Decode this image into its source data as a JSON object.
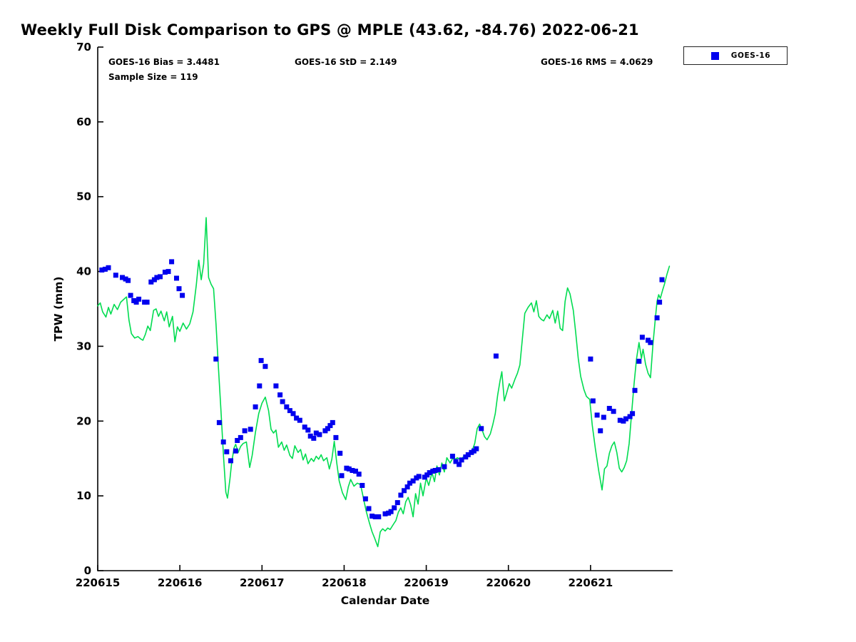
{
  "figure": {
    "title": "Weekly Full Disk Comparison to GPS @ MPLE (43.62, -84.76) 2022-06-21",
    "stats": {
      "bias": "GOES-16 Bias = 3.4481",
      "std": "GOES-16 StD = 2.149",
      "rms": "GOES-16 RMS = 4.0629",
      "sample_size": "Sample Size = 119"
    },
    "legend": {
      "position": "top-right",
      "entries": [
        {
          "label": "GOES-16",
          "marker": "square",
          "color": "#0000EE"
        }
      ]
    }
  },
  "chart_data": {
    "type": "line+scatter",
    "title": "Weekly Full Disk Comparison to GPS @ MPLE (43.62, -84.76) 2022-06-21",
    "xlabel": "Calendar Date",
    "ylabel": "TPW (mm)",
    "x_unit": "calendar day YYMMDD (values below are day-of-June 2022, 15 = 220615)",
    "xlim": [
      15,
      22
    ],
    "ylim": [
      0,
      70
    ],
    "grid": false,
    "legend_position": "top-right-outside",
    "x_ticks": [
      {
        "value": 15,
        "label": "220615"
      },
      {
        "value": 16,
        "label": "220616"
      },
      {
        "value": 17,
        "label": "220617"
      },
      {
        "value": 18,
        "label": "220618"
      },
      {
        "value": 19,
        "label": "220619"
      },
      {
        "value": 20,
        "label": "220620"
      },
      {
        "value": 21,
        "label": "220621"
      }
    ],
    "y_ticks": [
      {
        "value": 0,
        "label": "0"
      },
      {
        "value": 10,
        "label": "10"
      },
      {
        "value": 20,
        "label": "20"
      },
      {
        "value": 30,
        "label": "30"
      },
      {
        "value": 40,
        "label": "40"
      },
      {
        "value": 50,
        "label": "50"
      },
      {
        "value": 60,
        "label": "60"
      },
      {
        "value": 70,
        "label": "70"
      }
    ],
    "series": [
      {
        "name": "GPS",
        "type": "line",
        "color": "#00DC50",
        "x": [
          15.0,
          15.03,
          15.06,
          15.1,
          15.13,
          15.16,
          15.2,
          15.24,
          15.28,
          15.32,
          15.35,
          15.38,
          15.41,
          15.45,
          15.49,
          15.52,
          15.55,
          15.58,
          15.61,
          15.64,
          15.68,
          15.71,
          15.74,
          15.77,
          15.81,
          15.84,
          15.87,
          15.91,
          15.94,
          15.97,
          16.0,
          16.04,
          16.08,
          16.12,
          16.16,
          16.2,
          16.23,
          16.26,
          16.29,
          16.32,
          16.35,
          16.38,
          16.41,
          16.44,
          16.47,
          16.5,
          16.53,
          16.56,
          16.58,
          16.61,
          16.63,
          16.66,
          16.68,
          16.71,
          16.74,
          16.77,
          16.81,
          16.85,
          16.88,
          16.92,
          16.96,
          17.0,
          17.04,
          17.08,
          17.11,
          17.14,
          17.17,
          17.2,
          17.24,
          17.27,
          17.3,
          17.34,
          17.37,
          17.4,
          17.44,
          17.47,
          17.5,
          17.53,
          17.56,
          17.6,
          17.63,
          17.66,
          17.69,
          17.72,
          17.75,
          17.79,
          17.82,
          17.85,
          17.88,
          17.91,
          17.94,
          17.98,
          18.02,
          18.05,
          18.08,
          18.12,
          18.16,
          18.2,
          18.24,
          18.27,
          18.31,
          18.34,
          18.37,
          18.41,
          18.44,
          18.47,
          18.5,
          18.53,
          18.56,
          18.6,
          18.63,
          18.66,
          18.69,
          18.72,
          18.75,
          18.78,
          18.81,
          18.84,
          18.87,
          18.9,
          18.93,
          18.96,
          19.0,
          19.03,
          19.07,
          19.1,
          19.13,
          19.16,
          19.19,
          19.22,
          19.25,
          19.29,
          19.32,
          19.35,
          19.38,
          19.42,
          19.45,
          19.49,
          19.52,
          19.56,
          19.59,
          19.62,
          19.65,
          19.68,
          19.71,
          19.74,
          19.78,
          19.81,
          19.84,
          19.87,
          19.9,
          19.92,
          19.95,
          19.98,
          20.01,
          20.04,
          20.08,
          20.11,
          20.14,
          20.17,
          20.2,
          20.24,
          20.28,
          20.31,
          20.34,
          20.37,
          20.4,
          20.43,
          20.47,
          20.5,
          20.54,
          20.57,
          20.6,
          20.63,
          20.66,
          20.69,
          20.72,
          20.75,
          20.79,
          20.82,
          20.85,
          20.88,
          20.92,
          20.95,
          20.99,
          21.02,
          21.06,
          21.1,
          21.14,
          21.17,
          21.2,
          21.23,
          21.26,
          21.29,
          21.32,
          21.35,
          21.38,
          21.41,
          21.44,
          21.47,
          21.5,
          21.53,
          21.56,
          21.59,
          21.62,
          21.64,
          21.67,
          21.7,
          21.73,
          21.76,
          21.79,
          21.81,
          21.83,
          21.85,
          21.88,
          21.9,
          21.93,
          21.96
        ],
        "y": [
          35.4,
          35.8,
          34.6,
          33.9,
          35.2,
          34.3,
          35.6,
          34.9,
          35.9,
          36.3,
          36.6,
          33.5,
          31.7,
          31.1,
          31.3,
          31.0,
          30.8,
          31.6,
          32.7,
          32.1,
          34.8,
          35.0,
          34.0,
          34.7,
          33.4,
          34.6,
          32.6,
          34.0,
          30.6,
          32.6,
          32.0,
          33.1,
          32.3,
          33.0,
          34.6,
          38.2,
          41.5,
          38.9,
          41.0,
          47.2,
          39.2,
          38.3,
          37.7,
          33.0,
          27.0,
          21.5,
          15.5,
          10.5,
          9.7,
          12.3,
          14.4,
          16.4,
          16.9,
          15.8,
          16.6,
          17.0,
          17.2,
          13.8,
          15.4,
          18.5,
          21.0,
          22.4,
          23.2,
          21.4,
          18.9,
          18.4,
          18.8,
          16.5,
          17.2,
          16.1,
          16.8,
          15.4,
          15.0,
          16.7,
          15.8,
          16.2,
          14.8,
          15.6,
          14.3,
          15.0,
          14.6,
          15.3,
          14.9,
          15.5,
          14.7,
          15.1,
          13.6,
          14.9,
          17.3,
          14.4,
          12.0,
          10.4,
          9.5,
          11.2,
          12.2,
          11.3,
          11.7,
          11.5,
          9.4,
          7.9,
          6.3,
          5.2,
          4.4,
          3.2,
          5.2,
          5.6,
          5.3,
          5.7,
          5.5,
          6.2,
          6.7,
          7.8,
          8.4,
          7.6,
          9.2,
          9.8,
          8.8,
          7.2,
          10.3,
          8.9,
          11.7,
          10.0,
          12.4,
          11.4,
          13.1,
          11.9,
          14.0,
          12.8,
          14.4,
          13.2,
          15.1,
          14.4,
          15.0,
          14.9,
          15.1,
          14.8,
          15.2,
          15.4,
          15.6,
          16.1,
          17.0,
          19.0,
          19.6,
          18.8,
          17.9,
          17.5,
          18.3,
          19.5,
          21.0,
          23.5,
          25.5,
          26.6,
          22.7,
          23.8,
          25.0,
          24.4,
          25.6,
          26.4,
          27.5,
          31.0,
          34.4,
          35.2,
          35.8,
          34.6,
          36.1,
          34.0,
          33.6,
          33.4,
          34.2,
          33.7,
          34.8,
          33.1,
          34.7,
          32.4,
          32.1,
          36.0,
          37.8,
          37.0,
          34.8,
          31.8,
          28.4,
          26.0,
          24.2,
          23.3,
          22.9,
          19.5,
          16.2,
          13.3,
          10.8,
          13.6,
          14.0,
          15.7,
          16.7,
          17.2,
          15.8,
          13.7,
          13.2,
          13.8,
          14.7,
          17.0,
          21.0,
          25.0,
          28.3,
          30.5,
          28.4,
          29.6,
          27.6,
          26.4,
          25.8,
          30.3,
          33.8,
          36.0,
          36.9,
          36.4,
          37.6,
          38.3,
          39.6,
          40.7
        ]
      },
      {
        "name": "GOES-16",
        "type": "scatter",
        "marker": "square",
        "color": "#0000EE",
        "x": [
          15.05,
          15.09,
          15.13,
          15.22,
          15.3,
          15.34,
          15.37,
          15.4,
          15.44,
          15.47,
          15.5,
          15.57,
          15.6,
          15.65,
          15.69,
          15.72,
          15.76,
          15.82,
          15.86,
          15.9,
          15.96,
          15.99,
          16.03,
          16.44,
          16.48,
          16.53,
          16.57,
          16.62,
          16.68,
          16.7,
          16.74,
          16.79,
          16.86,
          16.92,
          16.97,
          16.99,
          17.04,
          17.17,
          17.22,
          17.25,
          17.3,
          17.34,
          17.38,
          17.42,
          17.46,
          17.52,
          17.56,
          17.59,
          17.63,
          17.66,
          17.7,
          17.77,
          17.8,
          17.83,
          17.86,
          17.9,
          17.95,
          17.97,
          18.03,
          18.06,
          18.1,
          18.14,
          18.18,
          18.22,
          18.26,
          18.3,
          18.34,
          18.38,
          18.42,
          18.5,
          18.54,
          18.57,
          18.61,
          18.65,
          18.69,
          18.73,
          18.77,
          18.8,
          18.84,
          18.88,
          18.91,
          18.98,
          19.01,
          19.04,
          19.08,
          19.11,
          19.15,
          19.22,
          19.32,
          19.36,
          19.4,
          19.43,
          19.48,
          19.51,
          19.55,
          19.58,
          19.61,
          19.67,
          19.85,
          21.0,
          21.03,
          21.08,
          21.12,
          21.16,
          21.23,
          21.28,
          21.36,
          21.4,
          21.43,
          21.48,
          21.51,
          21.54,
          21.59,
          21.63,
          21.7,
          21.73,
          21.81,
          21.84,
          21.87
        ],
        "y": [
          40.2,
          40.3,
          40.5,
          39.5,
          39.2,
          39.0,
          38.8,
          36.8,
          36.1,
          35.9,
          36.3,
          35.9,
          35.9,
          38.6,
          38.9,
          39.2,
          39.3,
          39.9,
          40.0,
          41.3,
          39.1,
          37.7,
          36.8,
          28.3,
          19.8,
          17.2,
          15.9,
          14.7,
          16.0,
          17.4,
          17.8,
          18.7,
          18.9,
          21.9,
          24.7,
          28.1,
          27.3,
          24.7,
          23.5,
          22.6,
          21.9,
          21.4,
          21.0,
          20.4,
          20.1,
          19.2,
          18.8,
          18.0,
          17.7,
          18.4,
          18.2,
          18.7,
          19.0,
          19.4,
          19.8,
          17.8,
          15.7,
          12.7,
          13.7,
          13.6,
          13.4,
          13.3,
          12.9,
          11.4,
          9.6,
          8.3,
          7.3,
          7.2,
          7.2,
          7.6,
          7.7,
          7.9,
          8.4,
          9.1,
          10.1,
          10.7,
          11.2,
          11.7,
          12.0,
          12.4,
          12.6,
          12.5,
          12.8,
          13.1,
          13.3,
          13.4,
          13.5,
          13.9,
          15.3,
          14.6,
          14.2,
          14.8,
          15.2,
          15.5,
          15.8,
          16.0,
          16.3,
          19.0,
          28.7,
          28.3,
          22.7,
          20.8,
          18.7,
          20.5,
          21.7,
          21.3,
          20.1,
          20.0,
          20.3,
          20.6,
          21.0,
          24.1,
          28.0,
          31.2,
          30.8,
          30.5,
          33.8,
          35.9,
          38.9
        ]
      }
    ]
  }
}
